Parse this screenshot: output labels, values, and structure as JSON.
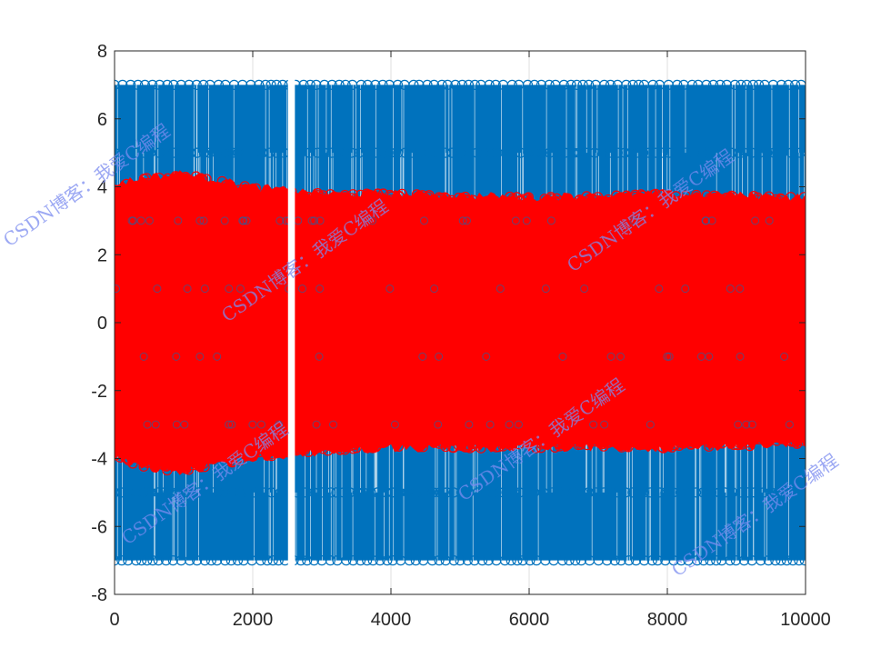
{
  "chart_data": {
    "type": "scatter",
    "title": "",
    "xlabel": "",
    "ylabel": "",
    "xlim": [
      0,
      10000
    ],
    "ylim": [
      -8,
      8
    ],
    "x_ticks": [
      0,
      2000,
      4000,
      6000,
      8000,
      10000
    ],
    "y_ticks": [
      -8,
      -6,
      -4,
      -2,
      0,
      2,
      4,
      6,
      8
    ],
    "x_tick_labels": [
      "0",
      "2000",
      "4000",
      "6000",
      "8000",
      "10000"
    ],
    "y_tick_labels": [
      "-8",
      "-6",
      "-4",
      "-2",
      "0",
      "2",
      "4",
      "6",
      "8"
    ],
    "grid": true,
    "marker": "open-circle",
    "gap_x_range": [
      2510,
      2610
    ],
    "series": [
      {
        "color": "#0072BD",
        "levels": [
          -7,
          -5,
          -3,
          -1,
          1,
          3,
          5,
          7
        ],
        "x_range": [
          0,
          10000
        ]
      },
      {
        "color": "#FF0000",
        "envelope": [
          {
            "x": 0,
            "ymin": -4.0,
            "ymax": 4.1
          },
          {
            "x": 500,
            "ymin": -4.3,
            "ymax": 4.3
          },
          {
            "x": 1000,
            "ymin": -4.4,
            "ymax": 4.4
          },
          {
            "x": 1500,
            "ymin": -4.2,
            "ymax": 4.2
          },
          {
            "x": 2000,
            "ymin": -4.0,
            "ymax": 4.0
          },
          {
            "x": 2500,
            "ymin": -3.9,
            "ymax": 3.9
          },
          {
            "x": 3000,
            "ymin": -3.8,
            "ymax": 3.8
          },
          {
            "x": 4000,
            "ymin": -3.7,
            "ymax": 3.8
          },
          {
            "x": 6000,
            "ymin": -3.7,
            "ymax": 3.7
          },
          {
            "x": 8000,
            "ymin": -3.7,
            "ymax": 3.8
          },
          {
            "x": 10000,
            "ymin": -3.6,
            "ymax": 3.7
          }
        ]
      }
    ]
  },
  "watermark": {
    "text": "CSDN博客：我爱C编程"
  }
}
